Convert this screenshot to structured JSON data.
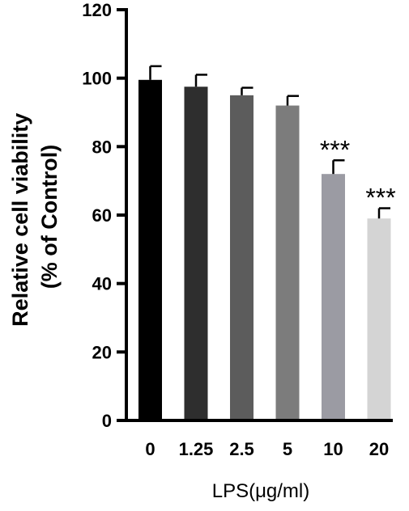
{
  "chart_data": {
    "type": "bar",
    "categories": [
      "0",
      "1.25",
      "2.5",
      "5",
      "10",
      "20"
    ],
    "values": [
      99.5,
      97.5,
      95,
      92,
      72,
      59
    ],
    "errors": [
      4,
      3.5,
      2.2,
      2.8,
      4,
      3
    ],
    "significance": [
      "",
      "",
      "",
      "",
      "***",
      "***"
    ],
    "bar_colors": [
      "#000000",
      "#2e2e2e",
      "#5c5c5c",
      "#7c7c7c",
      "#9b9ba3",
      "#d4d4d4"
    ],
    "xlabel": "LPS(μg/ml)",
    "ylabel_line1": "Relative cell viability",
    "ylabel_line2": "(% of Control)",
    "ylim": [
      0,
      120
    ],
    "yticks": [
      0,
      20,
      40,
      60,
      80,
      100,
      120
    ],
    "grid": false,
    "legend": "none"
  }
}
